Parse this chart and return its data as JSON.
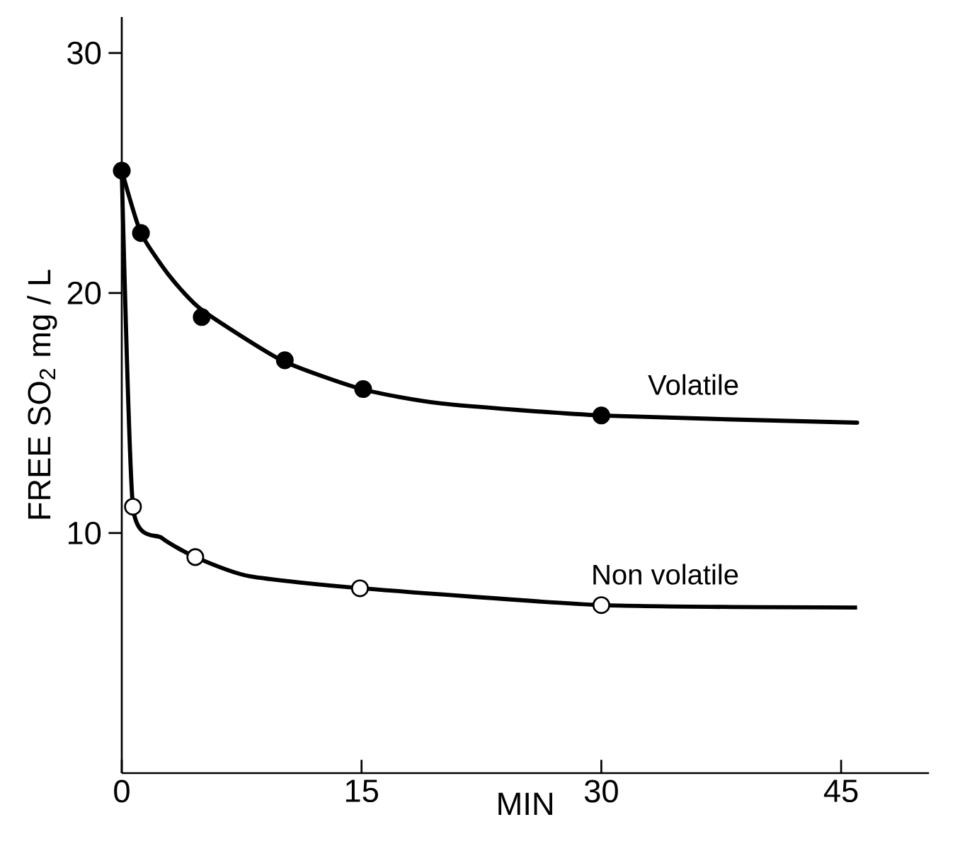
{
  "chart_data": {
    "type": "scatter",
    "xlabel": "MIN",
    "ylabel": "FREE  SO$_{2}$  mg / L",
    "xlim": [
      0,
      50.5
    ],
    "ylim": [
      0,
      31.5
    ],
    "xticks": [
      0,
      15,
      30,
      45
    ],
    "yticks": [
      10,
      20,
      30
    ],
    "grid": false,
    "series": [
      {
        "type": "line",
        "name": "Volatile",
        "color": "#000000",
        "marker": "none",
        "x": [
          0,
          1.2,
          3,
          5,
          10,
          15,
          20,
          30,
          46
        ],
        "values": [
          25.1,
          22.5,
          20.7,
          19.3,
          17.2,
          16.0,
          15.4,
          14.9,
          14.6
        ]
      },
      {
        "type": "line",
        "name": "Non volatile",
        "color": "#000000",
        "marker": "none",
        "x": [
          0,
          0.7,
          2.5,
          4.6,
          8,
          15,
          30,
          46
        ],
        "values": [
          25.1,
          11.1,
          9.8,
          9.0,
          8.2,
          7.7,
          7.0,
          6.9
        ]
      },
      {
        "color": "#000000",
        "marker": "circle",
        "x": [
          0,
          1.2,
          5.0,
          10.2,
          15.1,
          30.0
        ],
        "values": [
          25.1,
          22.5,
          19.0,
          17.2,
          16.0,
          14.9
        ]
      },
      {
        "color": "#ffffff",
        "marker": "circle",
        "x": [
          0.7,
          4.6,
          14.9,
          30.0
        ],
        "values": [
          11.1,
          9.0,
          7.7,
          7.0
        ]
      }
    ]
  }
}
